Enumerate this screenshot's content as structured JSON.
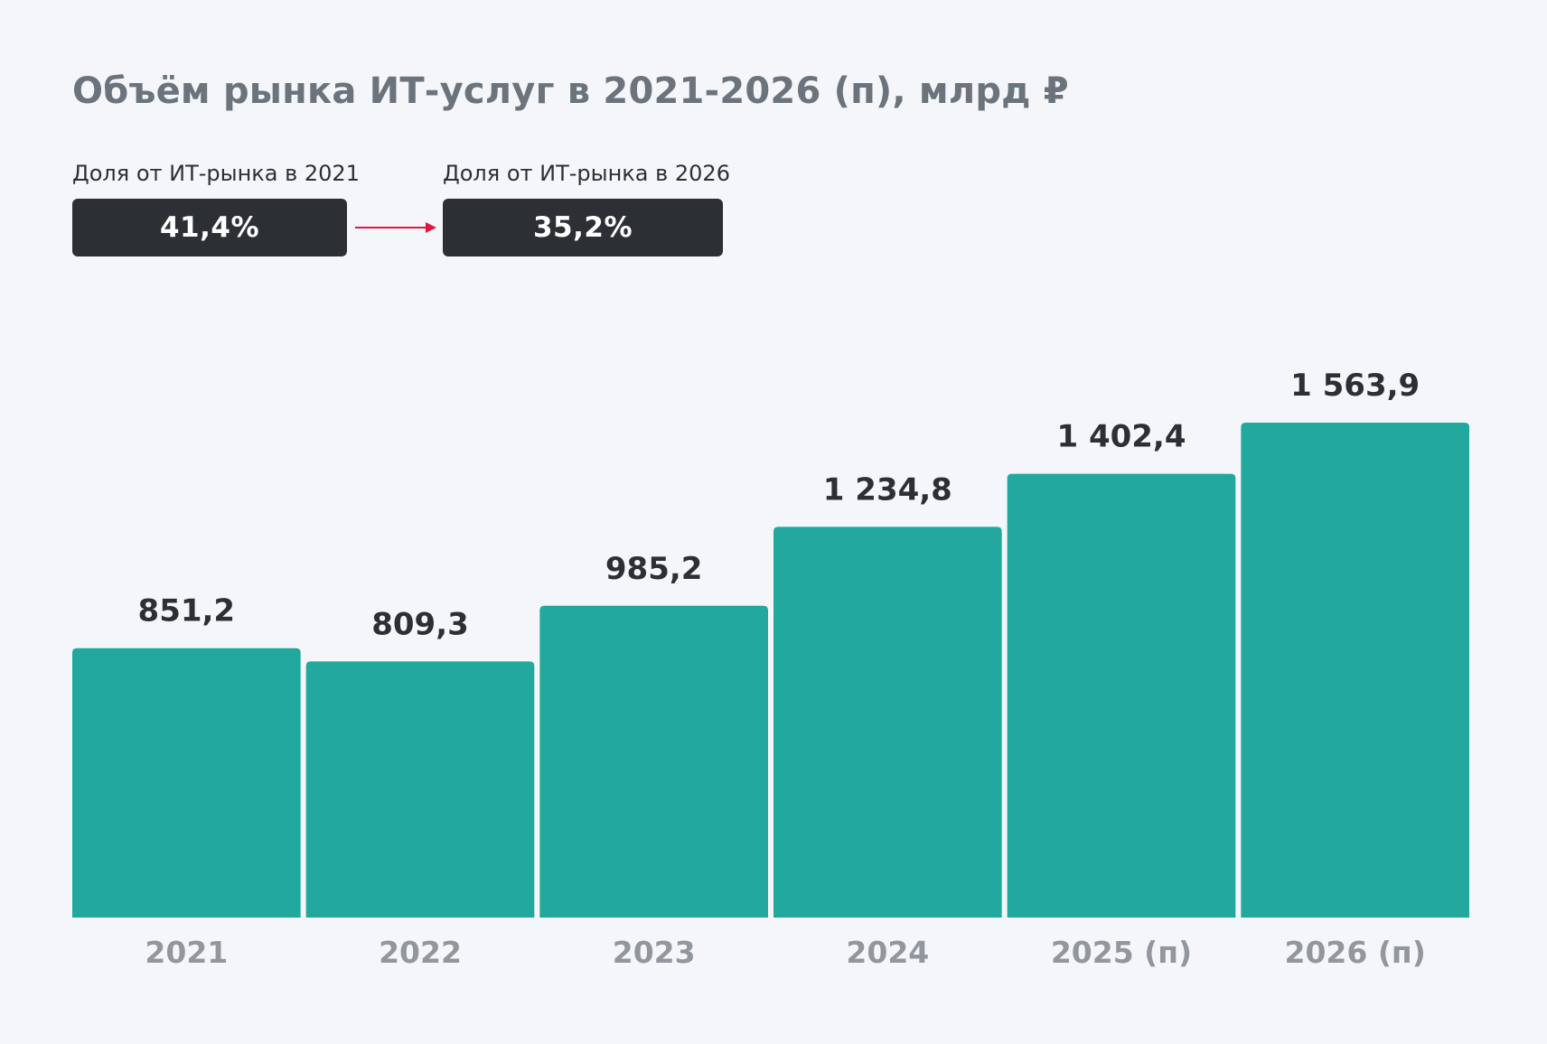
{
  "title": "Объём рынка ИТ-услуг в 2021-2026 (п), млрд ₽",
  "share": {
    "start": {
      "label": "Доля от ИТ-рынка в 2021",
      "value": "41,4%"
    },
    "end": {
      "label": "Доля от ИТ-рынка в 2026",
      "value": "35,2%"
    }
  },
  "colors": {
    "bar": "#22a89c",
    "arrow": "#e0173d",
    "box": "#2c3034"
  },
  "chart_data": {
    "type": "bar",
    "title": "Объём рынка ИТ-услуг в 2021-2026 (п), млрд ₽",
    "xlabel": "",
    "ylabel": "",
    "categories": [
      "2021",
      "2022",
      "2023",
      "2024",
      "2025 (п)",
      "2026 (п)"
    ],
    "values": [
      851.2,
      809.3,
      985.2,
      1234.8,
      1402.4,
      1563.9
    ],
    "value_labels": [
      "851,2",
      "809,3",
      "985,2",
      "1 234,8",
      "1 402,4",
      "1 563,9"
    ],
    "ylim": [
      0,
      1563.9
    ],
    "grid": false,
    "legend": "none"
  }
}
